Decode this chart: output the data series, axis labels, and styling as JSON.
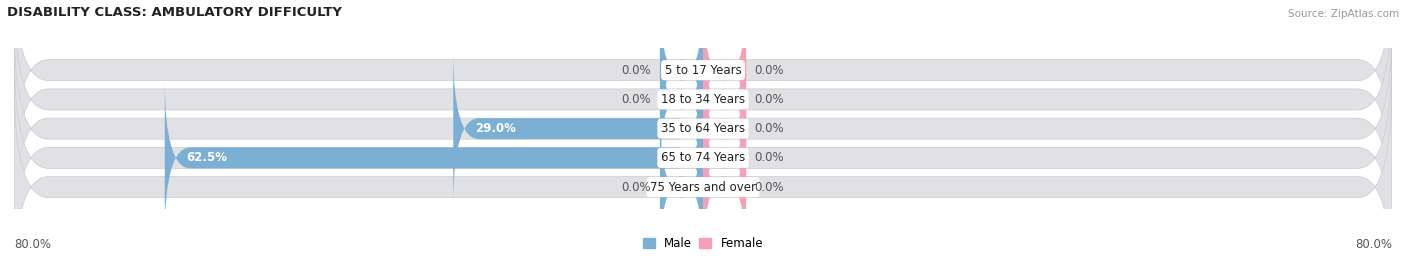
{
  "title": "DISABILITY CLASS: AMBULATORY DIFFICULTY",
  "source": "Source: ZipAtlas.com",
  "categories": [
    "5 to 17 Years",
    "18 to 34 Years",
    "35 to 64 Years",
    "65 to 74 Years",
    "75 Years and over"
  ],
  "male_values": [
    0.0,
    0.0,
    29.0,
    62.5,
    0.0
  ],
  "female_values": [
    0.0,
    0.0,
    0.0,
    0.0,
    0.0
  ],
  "male_color": "#7BAFD4",
  "female_color": "#F4A0B5",
  "bar_bg_color": "#E0E0E5",
  "axis_min": -80.0,
  "axis_max": 80.0,
  "bar_height": 0.72,
  "label_fontsize": 8.5,
  "title_fontsize": 9.5,
  "source_fontsize": 7.5,
  "legend_male": "Male",
  "legend_female": "Female",
  "x_left_label": "80.0%",
  "x_right_label": "80.0%",
  "min_bar_width": 5.0
}
